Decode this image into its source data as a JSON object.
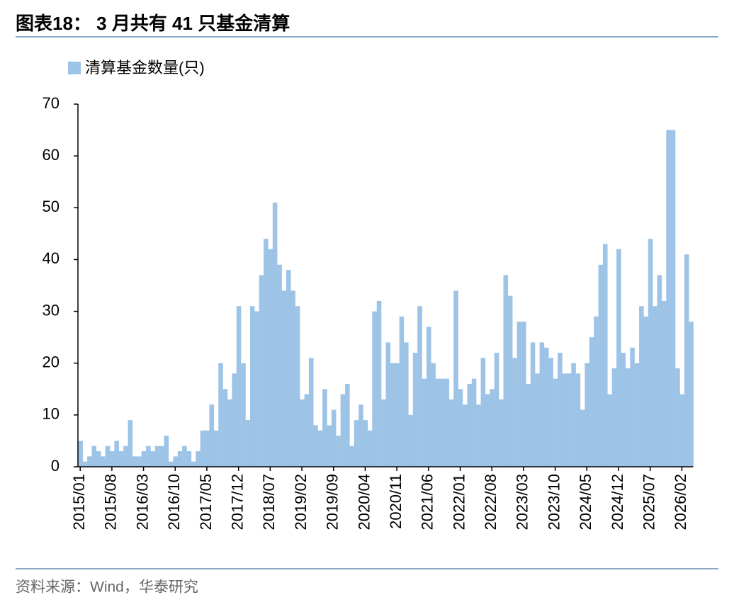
{
  "chart_data": {
    "type": "bar",
    "title": "图表18：  3 月共有 41 只基金清算",
    "source": "资料来源：Wind，华泰研究",
    "categories": [
      "2015/01",
      null,
      null,
      null,
      null,
      null,
      null,
      "2015/08",
      null,
      null,
      null,
      null,
      null,
      null,
      "2016/03",
      null,
      null,
      null,
      null,
      null,
      null,
      "2016/10",
      null,
      null,
      null,
      null,
      null,
      null,
      "2017/05",
      null,
      null,
      null,
      null,
      null,
      null,
      "2017/12",
      null,
      null,
      null,
      null,
      null,
      null,
      "2018/07",
      null,
      null,
      null,
      null,
      null,
      null,
      "2019/02",
      null,
      null,
      null,
      null,
      null,
      null,
      "2019/09",
      null,
      null,
      null,
      null,
      null,
      null,
      "2020/04",
      null,
      null,
      null,
      null,
      null,
      null,
      "2020/11",
      null,
      null,
      null,
      null,
      null,
      null,
      "2021/06",
      null,
      null,
      null,
      null,
      null,
      null,
      "2022/01",
      null,
      null,
      null,
      null,
      null,
      null,
      "2022/08",
      null,
      null,
      null,
      null,
      null,
      null,
      "2023/03",
      null,
      null,
      null,
      null,
      null,
      null,
      "2023/10",
      null,
      null,
      null,
      null,
      null,
      null,
      "2024/05",
      null,
      null,
      null,
      null,
      null,
      null,
      "2024/12",
      null,
      null,
      null,
      null,
      null,
      null,
      "2025/07",
      null,
      null,
      null,
      null,
      null,
      null,
      "2026/02",
      null,
      null
    ],
    "series": [
      {
        "name": "清算基金数量(只)",
        "color": "#9dc3e6",
        "values": [
          5,
          1,
          2,
          4,
          3,
          2,
          4,
          3,
          5,
          3,
          4,
          9,
          2,
          2,
          3,
          4,
          3,
          4,
          4,
          6,
          1,
          2,
          3,
          4,
          3,
          1,
          3,
          7,
          7,
          12,
          7,
          20,
          15,
          13,
          18,
          31,
          20,
          9,
          31,
          30,
          37,
          44,
          42,
          51,
          39,
          34,
          38,
          34,
          31,
          13,
          14,
          21,
          8,
          7,
          15,
          8,
          11,
          6,
          14,
          16,
          4,
          9,
          12,
          9,
          7,
          30,
          32,
          13,
          24,
          20,
          20,
          29,
          24,
          10,
          22,
          31,
          17,
          27,
          20,
          17,
          17,
          17,
          13,
          34,
          15,
          12,
          16,
          17,
          12,
          21,
          14,
          15,
          22,
          13,
          37,
          33,
          21,
          28,
          28,
          16,
          24,
          18,
          24,
          23,
          21,
          17,
          22,
          18,
          18,
          20,
          18,
          11,
          20,
          25,
          29,
          39,
          43,
          14,
          19,
          42,
          22,
          19,
          23,
          20,
          31,
          29,
          44,
          31,
          37,
          32,
          65,
          65,
          19,
          14,
          41,
          28
        ]
      }
    ],
    "ylim": [
      0,
      70
    ],
    "yticks": [
      0,
      10,
      20,
      30,
      40,
      50,
      60,
      70
    ]
  }
}
